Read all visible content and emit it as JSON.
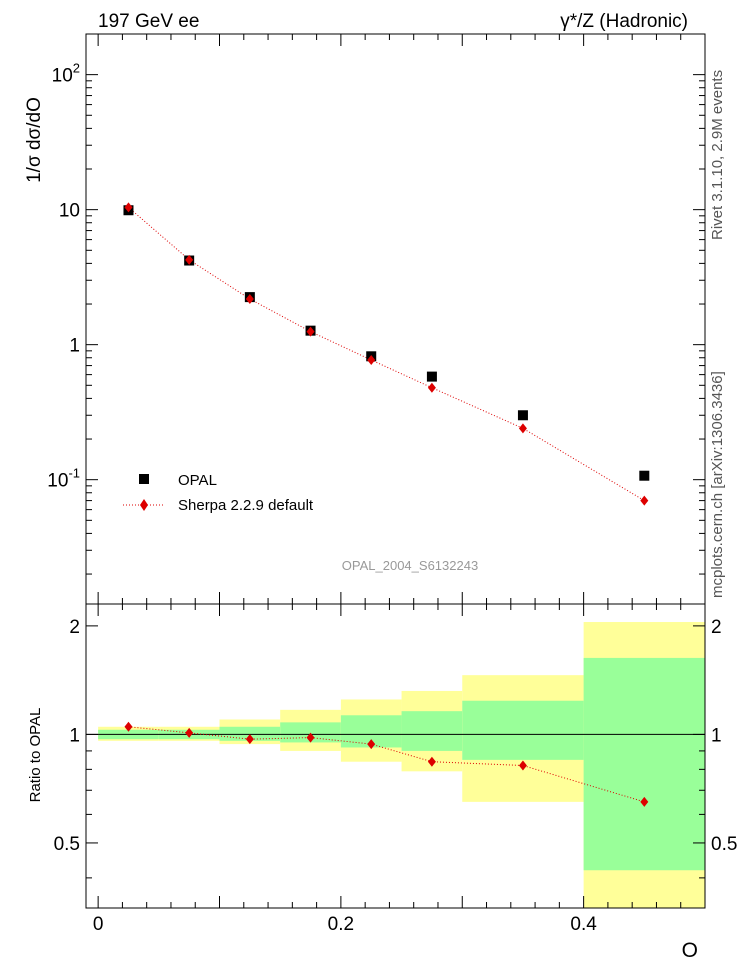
{
  "header": {
    "left": "197 GeV ee",
    "right": "γ*/Z (Hadronic)"
  },
  "side_labels": {
    "rivet": "Rivet 3.1.10,  2.9M events",
    "mcplots": "mcplots.cern.ch [arXiv:1306.3436]"
  },
  "watermark": "OPAL_2004_S6132243",
  "colors": {
    "data": "#000000",
    "mc": "#dd0000",
    "band_stat": "#99ff99",
    "band_total": "#ffff99"
  },
  "chart_data": [
    {
      "type": "scatter",
      "panel": "main",
      "ylabel": "1/σ dσ/dO",
      "yscale": "log",
      "ylim": [
        0.012,
        200
      ],
      "xlim": [
        -0.01,
        0.5
      ],
      "y_ticks": [
        "10^2",
        "10",
        "1",
        "10^-1"
      ],
      "grid": false,
      "legend_position": "bottom-left",
      "series": [
        {
          "name": "OPAL",
          "marker": "square",
          "x": [
            0.025,
            0.075,
            0.125,
            0.175,
            0.225,
            0.275,
            0.35,
            0.45
          ],
          "values": [
            9.9,
            4.2,
            2.25,
            1.27,
            0.82,
            0.58,
            0.3,
            0.107
          ]
        },
        {
          "name": "Sherpa 2.2.9 default",
          "marker": "diamond",
          "line": "dotted",
          "x": [
            0.025,
            0.075,
            0.125,
            0.175,
            0.225,
            0.275,
            0.35,
            0.45
          ],
          "values": [
            10.4,
            4.25,
            2.18,
            1.25,
            0.77,
            0.48,
            0.24,
            0.07
          ]
        }
      ]
    },
    {
      "type": "line",
      "panel": "ratio",
      "ylabel": "Ratio to OPAL",
      "xlabel": "O",
      "xlim": [
        -0.01,
        0.5
      ],
      "ylim": [
        0.33,
        2.3
      ],
      "x_ticks": [
        "0",
        "0.2",
        "0.4"
      ],
      "y_ticks": [
        "0.5",
        "1",
        "2"
      ],
      "reference_line": 1,
      "bins": [
        [
          0.0,
          0.05
        ],
        [
          0.05,
          0.1
        ],
        [
          0.1,
          0.15
        ],
        [
          0.15,
          0.2
        ],
        [
          0.2,
          0.25
        ],
        [
          0.25,
          0.3
        ],
        [
          0.3,
          0.4
        ],
        [
          0.4,
          0.5
        ]
      ],
      "band_stat": [
        [
          0.97,
          1.03
        ],
        [
          0.97,
          1.03
        ],
        [
          0.96,
          1.05
        ],
        [
          0.95,
          1.08
        ],
        [
          0.92,
          1.13
        ],
        [
          0.9,
          1.16
        ],
        [
          0.85,
          1.24
        ],
        [
          0.42,
          1.63
        ]
      ],
      "band_total": [
        [
          0.96,
          1.05
        ],
        [
          0.96,
          1.05
        ],
        [
          0.94,
          1.1
        ],
        [
          0.9,
          1.17
        ],
        [
          0.84,
          1.25
        ],
        [
          0.79,
          1.32
        ],
        [
          0.65,
          1.46
        ],
        [
          0.33,
          2.05
        ]
      ],
      "series": [
        {
          "name": "Sherpa 2.2.9 default",
          "x": [
            0.025,
            0.075,
            0.125,
            0.175,
            0.225,
            0.275,
            0.35,
            0.45
          ],
          "values": [
            1.05,
            1.01,
            0.97,
            0.98,
            0.94,
            0.84,
            0.82,
            0.65
          ]
        }
      ]
    }
  ]
}
